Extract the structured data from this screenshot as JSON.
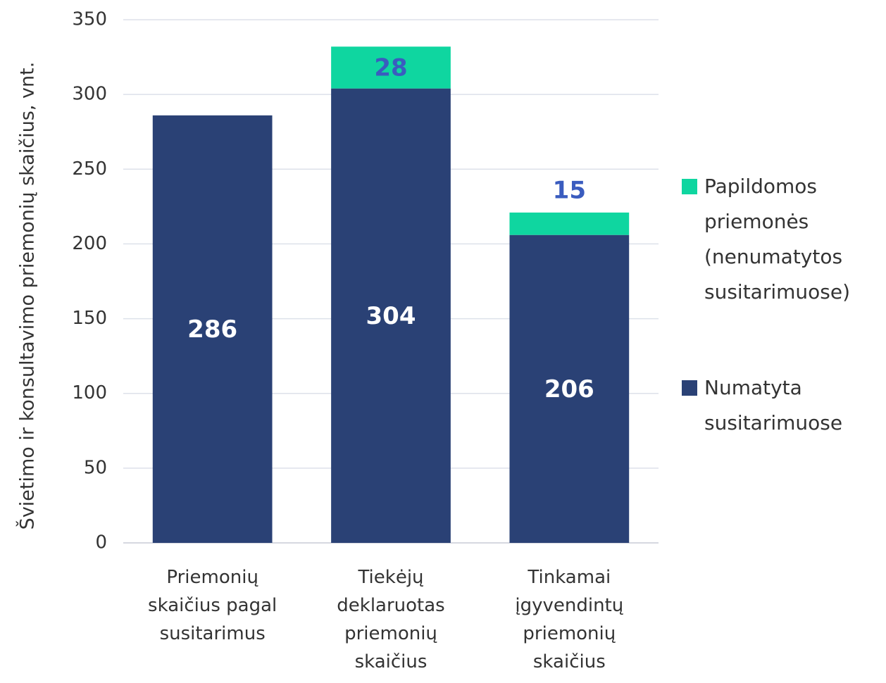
{
  "chart_data": {
    "type": "stacked_bar",
    "y_axis_label": "Švietimo ir konsultavimo priemonių skaičius, vnt.",
    "categories": [
      "Priemonių skaičius pagal susitarimus",
      "Tiekėjų deklaruotas priemonių skaičius",
      "Tinkamai įgyvendintų priemonių skaičius"
    ],
    "series": [
      {
        "name": "Numatyta susitarimuose",
        "color": "#2a4175",
        "label_color": "#ffffff",
        "values": [
          286,
          304,
          206
        ]
      },
      {
        "name": "Papildomos priemonės (nenumatytos susitarimuose)",
        "color": "#0fd6a0",
        "label_color": "#3a5cbf",
        "values": [
          null,
          28,
          15
        ]
      }
    ],
    "ylim": [
      0,
      350
    ],
    "yticks": [
      0,
      50,
      100,
      150,
      200,
      250,
      300,
      350
    ],
    "grid": true,
    "legend": "right"
  }
}
